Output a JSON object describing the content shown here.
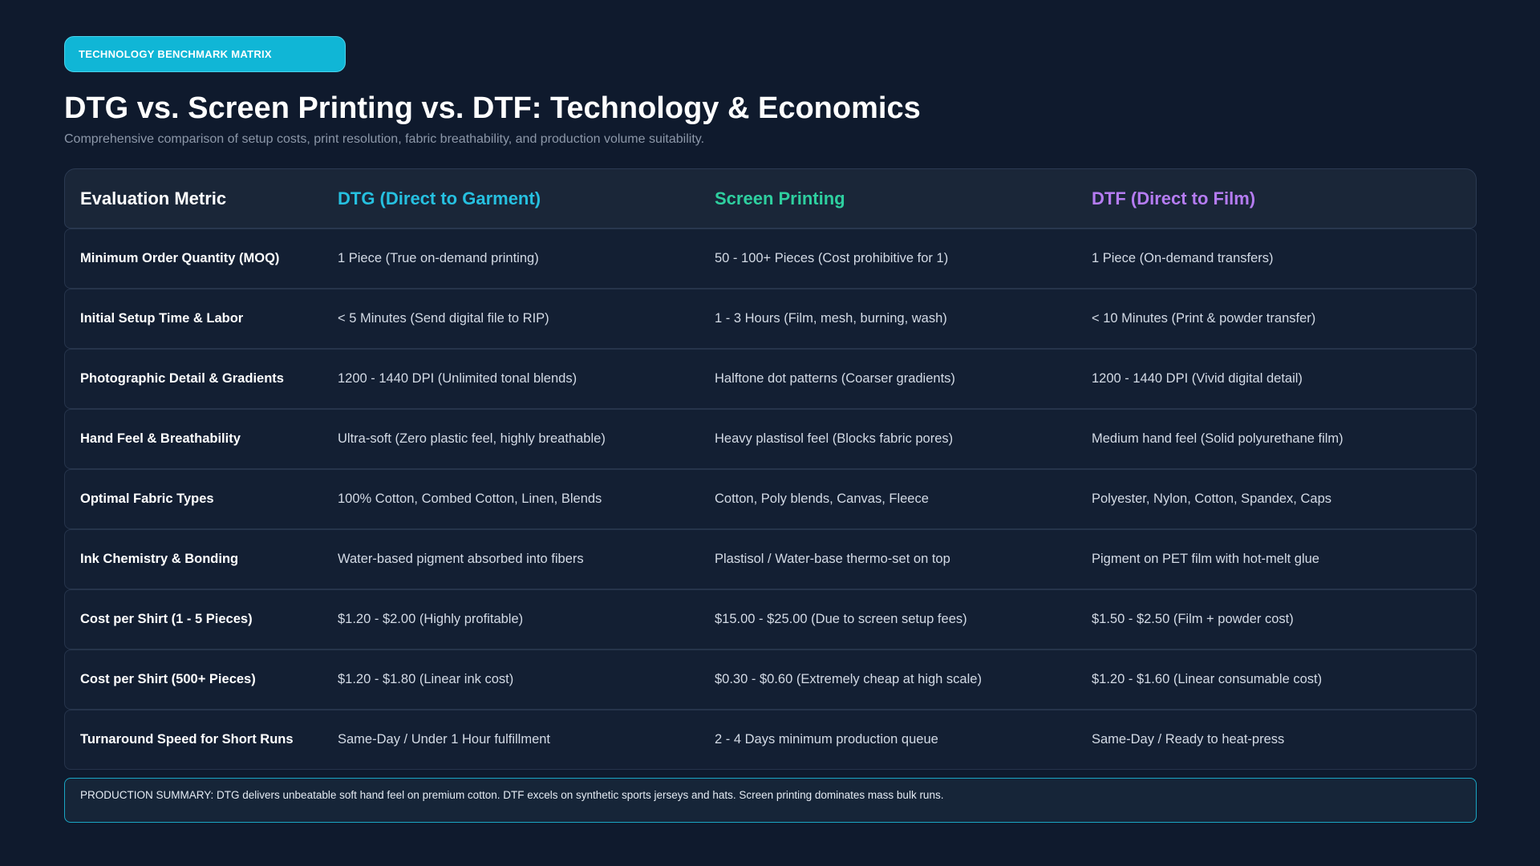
{
  "badge": {
    "label": "TECHNOLOGY BENCHMARK MATRIX"
  },
  "title": "DTG vs. Screen Printing vs. DTF: Technology & Economics",
  "subtitle": "Comprehensive comparison of setup costs, print resolution, fabric breathability, and production volume suitability.",
  "colors": {
    "dtg": "#26c0e0",
    "screen": "#2ecf9f",
    "dtf": "#b57cf2",
    "badge": "#10b6d6"
  },
  "table": {
    "headers": [
      "Evaluation Metric",
      "DTG (Direct to Garment)",
      "Screen Printing",
      "DTF (Direct to Film)"
    ],
    "rows": [
      [
        "Minimum Order Quantity (MOQ)",
        "1 Piece (True on-demand printing)",
        "50 - 100+ Pieces (Cost prohibitive for 1)",
        "1 Piece (On-demand transfers)"
      ],
      [
        "Initial Setup Time & Labor",
        "< 5 Minutes (Send digital file to RIP)",
        "1 - 3 Hours (Film, mesh, burning, wash)",
        "< 10 Minutes (Print & powder transfer)"
      ],
      [
        "Photographic Detail & Gradients",
        "1200 - 1440 DPI (Unlimited tonal blends)",
        "Halftone dot patterns (Coarser gradients)",
        "1200 - 1440 DPI (Vivid digital detail)"
      ],
      [
        "Hand Feel & Breathability",
        "Ultra-soft (Zero plastic feel, highly breathable)",
        "Heavy plastisol feel (Blocks fabric pores)",
        "Medium hand feel (Solid polyurethane film)"
      ],
      [
        "Optimal Fabric Types",
        "100% Cotton, Combed Cotton, Linen, Blends",
        "Cotton, Poly blends, Canvas, Fleece",
        "Polyester, Nylon, Cotton, Spandex, Caps"
      ],
      [
        "Ink Chemistry & Bonding",
        "Water-based pigment absorbed into fibers",
        "Plastisol / Water-base thermo-set on top",
        "Pigment on PET film with hot-melt glue"
      ],
      [
        "Cost per Shirt (1 - 5 Pieces)",
        "$1.20 - $2.00 (Highly profitable)",
        "$15.00 - $25.00 (Due to screen setup fees)",
        "$1.50 - $2.50 (Film + powder cost)"
      ],
      [
        "Cost per Shirt (500+ Pieces)",
        "$1.20 - $1.80 (Linear ink cost)",
        "$0.30 - $0.60 (Extremely cheap at high scale)",
        "$1.20 - $1.60 (Linear consumable cost)"
      ],
      [
        "Turnaround Speed for Short Runs",
        "Same-Day / Under 1 Hour fulfillment",
        "2 - 4 Days minimum production queue",
        "Same-Day / Ready to heat-press"
      ]
    ]
  },
  "summary": "PRODUCTION SUMMARY: DTG delivers unbeatable soft hand feel on premium cotton. DTF excels on synthetic sports jerseys and hats. Screen printing dominates mass bulk runs."
}
